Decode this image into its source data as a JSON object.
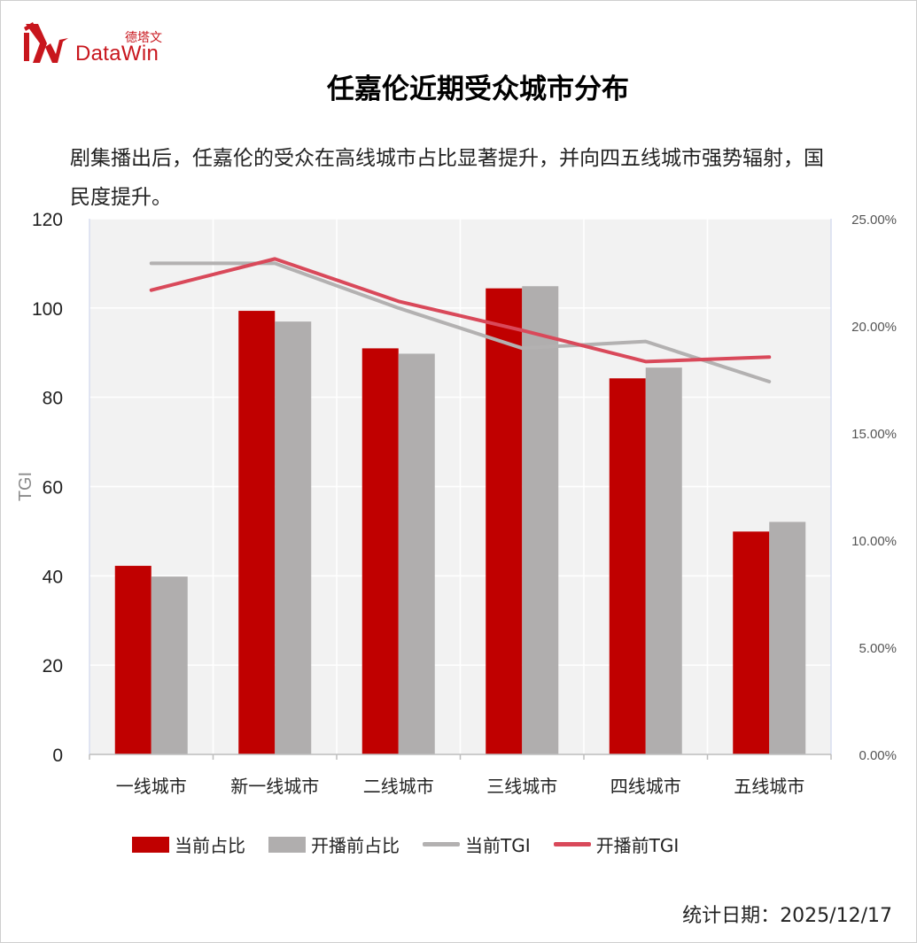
{
  "brand": {
    "name_en": "DataWin",
    "name_cn": "德塔文",
    "color": "#c8161d"
  },
  "title": "任嘉伦近期受众城市分布",
  "subtitle": "剧集播出后，任嘉伦的受众在高线城市占比显著提升，并向四五线城市强势辐射，国民度提升。",
  "footer": {
    "date_label": "统计日期：",
    "date_value": "2025/12/17"
  },
  "chart_data": {
    "type": "bar",
    "categories": [
      "一线城市",
      "新一线城市",
      "二线城市",
      "三线城市",
      "四线城市",
      "五线城市"
    ],
    "series": [
      {
        "name": "当前占比",
        "kind": "bar",
        "axis": "right",
        "color": "#c00000",
        "values": [
          0.088,
          0.207,
          0.1895,
          0.2175,
          0.1755,
          0.104
        ]
      },
      {
        "name": "开播前占比",
        "kind": "bar",
        "axis": "right",
        "color": "#b0aeae",
        "values": [
          0.083,
          0.202,
          0.187,
          0.2185,
          0.1805,
          0.1085
        ]
      },
      {
        "name": "当前TGI",
        "kind": "line",
        "axis": "left",
        "color": "#b3b1b1",
        "values": [
          110,
          110,
          100,
          91,
          92.5,
          83.5
        ]
      },
      {
        "name": "开播前TGI",
        "kind": "line",
        "axis": "left",
        "color": "#d9495a",
        "values": [
          104,
          111,
          101.5,
          95,
          88,
          89
        ]
      }
    ],
    "y_left": {
      "label": "TGI",
      "min": 0,
      "max": 120,
      "step": 20,
      "ticks": [
        "0",
        "20",
        "40",
        "60",
        "80",
        "100",
        "120"
      ]
    },
    "y_right": {
      "min": 0,
      "max": 0.25,
      "step": 0.05,
      "ticks": [
        "0.00%",
        "5.00%",
        "10.00%",
        "15.00%",
        "20.00%",
        "25.00%"
      ]
    },
    "grid": true,
    "legend_position": "bottom"
  }
}
